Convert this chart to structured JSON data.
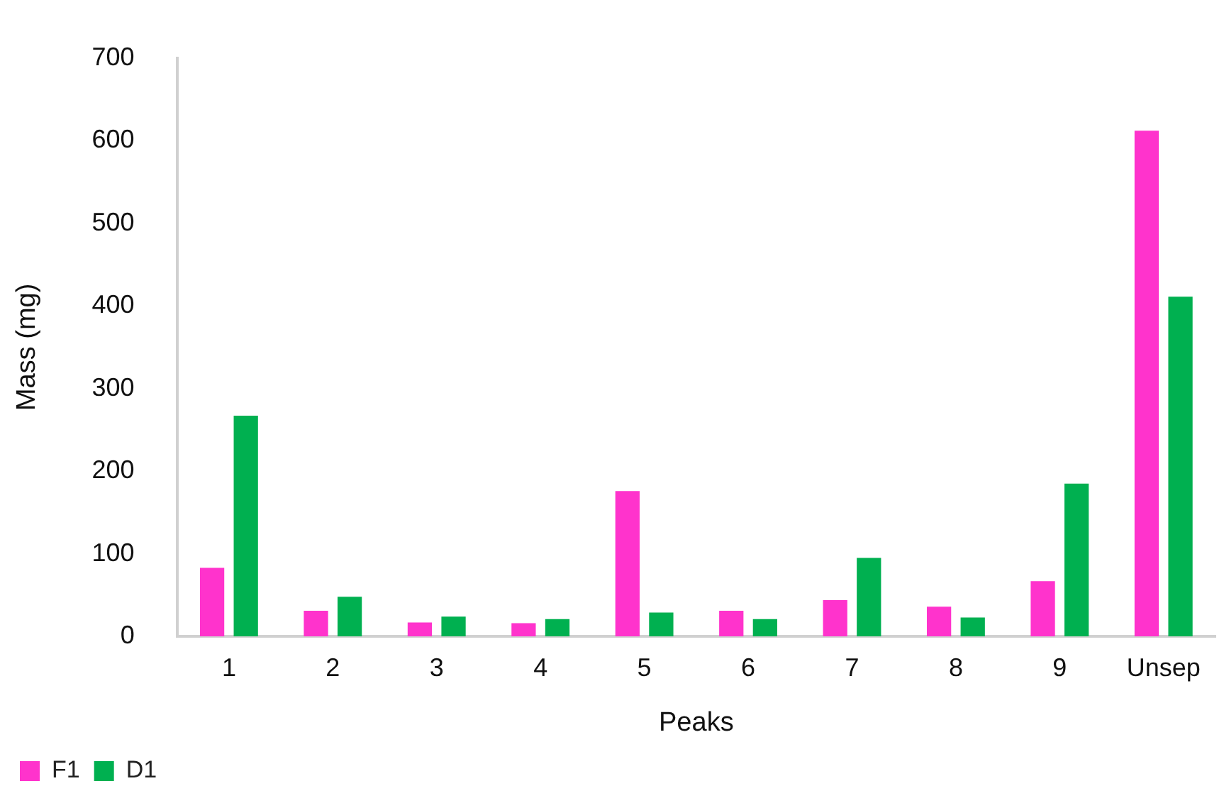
{
  "chart_data": {
    "type": "bar",
    "xlabel": "Peaks",
    "ylabel": "Mass (mg)",
    "categories": [
      "1",
      "2",
      "3",
      "4",
      "5",
      "6",
      "7",
      "8",
      "9",
      "Unsep"
    ],
    "series": [
      {
        "name": "F1",
        "color": "#ff33cc",
        "values": [
          83,
          31,
          17,
          16,
          176,
          31,
          44,
          36,
          67,
          612
        ]
      },
      {
        "name": "D1",
        "color": "#00b050",
        "values": [
          267,
          48,
          24,
          21,
          29,
          21,
          95,
          23,
          185,
          411
        ]
      }
    ],
    "ylim": [
      0,
      700
    ],
    "yticks": [
      0,
      100,
      200,
      300,
      400,
      500,
      600,
      700
    ],
    "grid": false,
    "legend": "bottom left"
  }
}
